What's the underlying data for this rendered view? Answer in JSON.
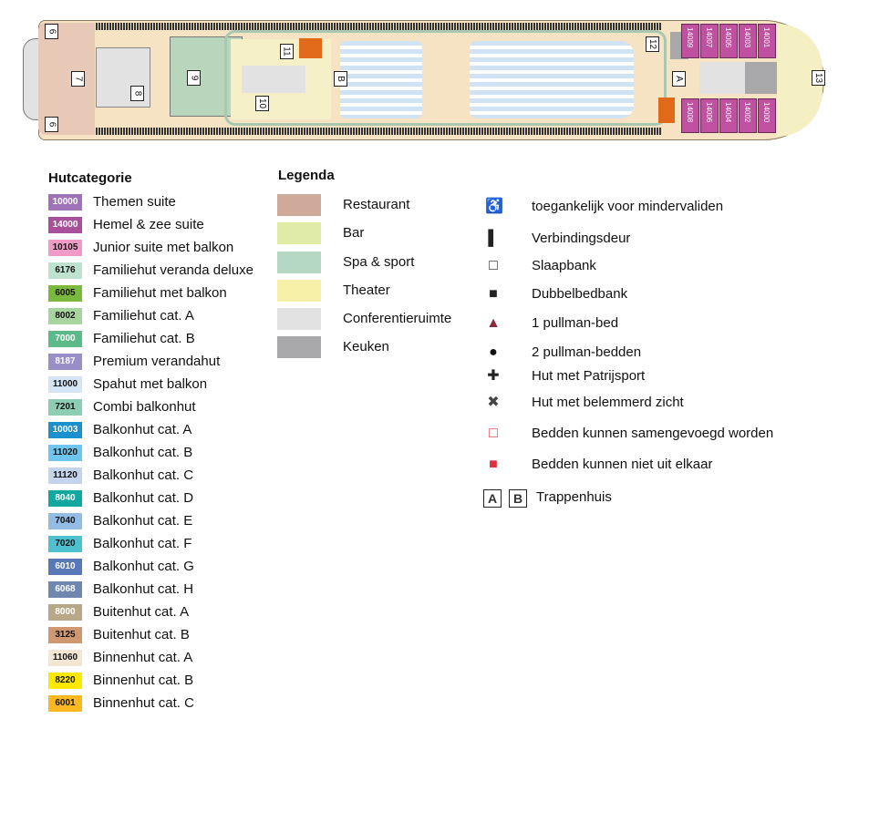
{
  "deck_plan": {
    "labels": [
      "6",
      "6",
      "7",
      "8",
      "9",
      "10",
      "11",
      "12",
      "13",
      "A",
      "B"
    ],
    "cabins_top": [
      "14009",
      "14007",
      "14005",
      "14003",
      "14001"
    ],
    "cabins_bottom": [
      "14008",
      "14006",
      "14004",
      "14002",
      "14000"
    ]
  },
  "hutcategorie": {
    "title": "Hutcategorie",
    "items": [
      {
        "code": "10000",
        "label": "Themen suite",
        "color": "#9f73b8",
        "text": "#ffffff"
      },
      {
        "code": "14000",
        "label": "Hemel & zee suite",
        "color": "#a8509a",
        "text": "#ffffff"
      },
      {
        "code": "10105",
        "label": "Junior suite met balkon",
        "color": "#f09ac8",
        "text": "#111111"
      },
      {
        "code": "6176",
        "label": "Familiehut veranda deluxe",
        "color": "#bde3d0",
        "text": "#111111"
      },
      {
        "code": "6005",
        "label": "Familiehut met balkon",
        "color": "#7ab840",
        "text": "#111111"
      },
      {
        "code": "8002",
        "label": "Familiehut cat. A",
        "color": "#a8d4a0",
        "text": "#111111"
      },
      {
        "code": "7000",
        "label": "Familiehut cat. B",
        "color": "#5cba88",
        "text": "#ffffff"
      },
      {
        "code": "8187",
        "label": "Premium verandahut",
        "color": "#9a8ec8",
        "text": "#ffffff"
      },
      {
        "code": "11000",
        "label": "Spahut met balkon",
        "color": "#d4e6f6",
        "text": "#111111"
      },
      {
        "code": "7201",
        "label": "Combi balkonhut",
        "color": "#8ccdb4",
        "text": "#111111"
      },
      {
        "code": "10003",
        "label": "Balkonhut cat. A",
        "color": "#1a90cc",
        "text": "#ffffff"
      },
      {
        "code": "11020",
        "label": "Balkonhut cat. B",
        "color": "#6ec6ee",
        "text": "#111111"
      },
      {
        "code": "11120",
        "label": "Balkonhut cat. C",
        "color": "#c4d4ec",
        "text": "#111111"
      },
      {
        "code": "8040",
        "label": "Balkonhut cat. D",
        "color": "#12a8a0",
        "text": "#ffffff"
      },
      {
        "code": "7040",
        "label": "Balkonhut cat. E",
        "color": "#92bce4",
        "text": "#111111"
      },
      {
        "code": "7020",
        "label": "Balkonhut cat. F",
        "color": "#4ec0d0",
        "text": "#111111"
      },
      {
        "code": "6010",
        "label": "Balkonhut cat. G",
        "color": "#5878b8",
        "text": "#ffffff"
      },
      {
        "code": "6068",
        "label": "Balkonhut cat. H",
        "color": "#7088b0",
        "text": "#ffffff"
      },
      {
        "code": "8000",
        "label": "Buitenhut cat. A",
        "color": "#b8a888",
        "text": "#ffffff"
      },
      {
        "code": "3125",
        "label": "Buitenhut cat. B",
        "color": "#d09870",
        "text": "#111111"
      },
      {
        "code": "11060",
        "label": "Binnenhut cat. A",
        "color": "#f4e6d4",
        "text": "#111111"
      },
      {
        "code": "8220",
        "label": "Binnenhut cat. B",
        "color": "#ffe800",
        "text": "#111111"
      },
      {
        "code": "6001",
        "label": "Binnenhut cat. C",
        "color": "#fbb820",
        "text": "#111111"
      }
    ]
  },
  "legenda": {
    "title": "Legenda",
    "areas": [
      {
        "label": "Restaurant",
        "color": "#cfa99a"
      },
      {
        "label": "Bar",
        "color": "#e0eba8"
      },
      {
        "label": "Spa & sport",
        "color": "#b4d8c4"
      },
      {
        "label": "Theater",
        "color": "#f6f0a8"
      },
      {
        "label": "Conferentieruimte",
        "color": "#e2e2e2"
      },
      {
        "label": "Keuken",
        "color": "#a8a8aa"
      }
    ],
    "symbols": [
      {
        "icon": "wheelchair-icon",
        "glyph": "♿",
        "label": "toegankelijk voor mindervaliden"
      },
      {
        "icon": "connecting-door-icon",
        "glyph": "▌",
        "label": "Verbindingsdeur"
      },
      {
        "icon": "sofa-bed-icon",
        "glyph": "□",
        "label": "Slaapbank"
      },
      {
        "icon": "double-sofa-bed-icon",
        "glyph": "■",
        "label": "Dubbelbedbank"
      },
      {
        "icon": "triangle-icon",
        "glyph": "▲",
        "label": "1 pullman-bed"
      },
      {
        "icon": "circle-icon",
        "glyph": "●",
        "label": "2 pullman-bedden"
      },
      {
        "icon": "plus-icon",
        "glyph": "✚",
        "label": "Hut met Patrijsport"
      },
      {
        "icon": "obstructed-view-icon",
        "glyph": "✖",
        "label": "Hut met belemmerd zicht"
      },
      {
        "icon": "outline-square-red-icon",
        "glyph": "□",
        "label": "Bedden kunnen samengevoegd worden"
      },
      {
        "icon": "filled-square-red-icon",
        "glyph": "■",
        "label": "Bedden kunnen niet uit elkaar"
      }
    ],
    "stairs": {
      "a": "A",
      "b": "B",
      "label": "Trappenhuis"
    }
  }
}
